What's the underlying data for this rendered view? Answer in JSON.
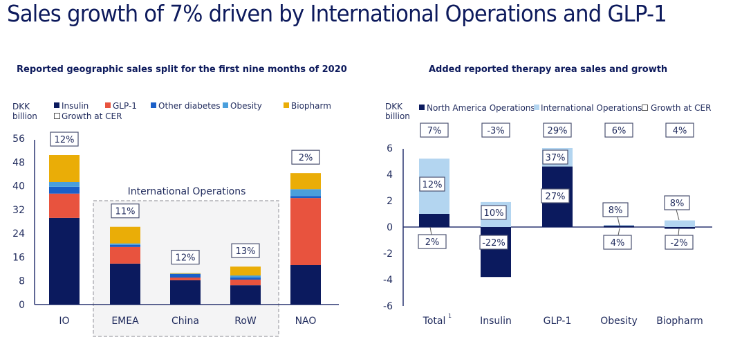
{
  "page": {
    "title": "Sales growth of 7% driven by International Operations and GLP-1"
  },
  "colors": {
    "insulin": "#0b1a5e",
    "glp1": "#e8533e",
    "other_diabetes": "#1a5fc8",
    "obesity": "#4a9fdc",
    "biopharm": "#eaad07",
    "nao": "#0b1a5e",
    "io": "#b3d5f0",
    "axis": "#2a3570",
    "text": "#1f2a5c"
  },
  "chart_data": [
    {
      "id": "left",
      "type": "bar",
      "stacked": true,
      "title": "Reported geographic sales split for the first nine months of 2020",
      "ylabel": "DKK billion",
      "ylim": [
        0,
        56
      ],
      "yticks": [
        0,
        8,
        16,
        24,
        32,
        40,
        48,
        56
      ],
      "grid": false,
      "legend_position": "top",
      "legend": [
        "Insulin",
        "GLP-1",
        "Other diabetes",
        "Obesity",
        "Biopharm",
        "Growth at CER"
      ],
      "categories": [
        "IO",
        "EMEA",
        "China",
        "RoW",
        "NAO"
      ],
      "series": [
        {
          "name": "Insulin",
          "key": "insulin",
          "values": [
            29.2,
            13.8,
            8.2,
            6.5,
            13.3
          ]
        },
        {
          "name": "GLP-1",
          "key": "glp1",
          "values": [
            8.2,
            5.6,
            0.9,
            1.9,
            22.6
          ]
        },
        {
          "name": "Other diabetes",
          "key": "other_diabetes",
          "values": [
            2.3,
            0.7,
            1.2,
            0.7,
            0.7
          ]
        },
        {
          "name": "Obesity",
          "key": "obesity",
          "values": [
            1.6,
            0.5,
            0.1,
            0.7,
            2.3
          ]
        },
        {
          "name": "Biopharm",
          "key": "biopharm",
          "values": [
            9.1,
            5.6,
            0.2,
            3.0,
            5.4
          ]
        }
      ],
      "growth_labels": [
        "12%",
        "11%",
        "12%",
        "13%",
        "2%"
      ],
      "group_annotation": {
        "label": "International Operations",
        "categories": [
          "EMEA",
          "China",
          "RoW"
        ]
      }
    },
    {
      "id": "right",
      "type": "bar",
      "stacked": true,
      "title": "Added reported therapy area sales and growth",
      "ylabel": "DKK billion",
      "ylim": [
        -6,
        6
      ],
      "yticks": [
        -6,
        -4,
        -2,
        0,
        2,
        4,
        6
      ],
      "grid": false,
      "legend_position": "top",
      "legend": [
        "North America Operations",
        "International Operations",
        "Growth at CER"
      ],
      "categories": [
        "Total",
        "Insulin",
        "GLP-1",
        "Obesity",
        "Biopharm"
      ],
      "category_footnotes": [
        "1",
        "",
        "",
        "",
        ""
      ],
      "series": [
        {
          "name": "North America Operations",
          "key": "nao",
          "values": [
            1.0,
            -3.8,
            4.6,
            0.1,
            -0.1
          ]
        },
        {
          "name": "International Operations",
          "key": "io",
          "values": [
            4.2,
            1.9,
            1.4,
            0.05,
            0.5
          ]
        }
      ],
      "total_growth_labels": [
        "7%",
        "-3%",
        "29%",
        "6%",
        "4%"
      ],
      "nao_growth_labels": [
        "2%",
        "-22%",
        "27%",
        "4%",
        "-2%"
      ],
      "io_growth_labels": [
        "12%",
        "10%",
        "37%",
        "8%",
        "8%"
      ]
    }
  ]
}
